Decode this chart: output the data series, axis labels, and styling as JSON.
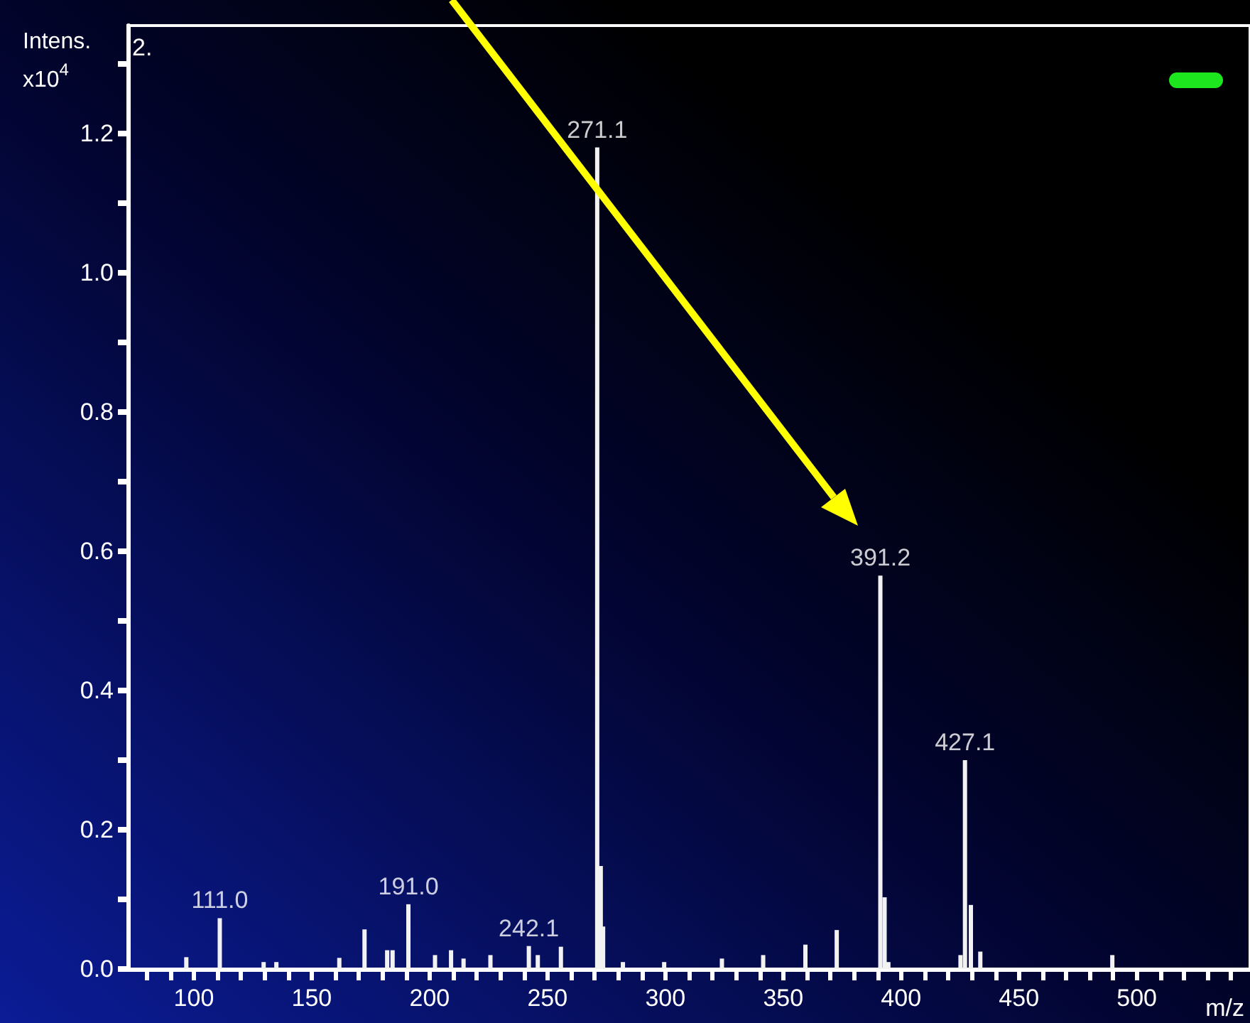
{
  "chart_data": {
    "type": "bar",
    "ylabel": "Intens.\nx10$^{4}$",
    "xlabel": "m/z",
    "annotations": [
      "2.",
      {
        "text": "111.0",
        "x": 111.0,
        "y": 0.073
      },
      {
        "text": "191.0",
        "x": 191.0,
        "y": 0.093
      },
      {
        "text": "242.1",
        "x": 242.1,
        "y": 0.033
      },
      {
        "text": "271.1",
        "x": 271.1,
        "y": 1.18
      },
      {
        "text": "391.2",
        "x": 391.2,
        "y": 0.565
      },
      {
        "text": "427.1",
        "x": 427.1,
        "y": 0.3
      }
    ],
    "x": [
      96.8,
      111.0,
      129.6,
      135,
      161.7,
      172.4,
      182,
      184.3,
      191.0,
      202.3,
      209.1,
      214.4,
      225.8,
      242.1,
      245.9,
      255.7,
      271.1,
      272.6,
      273.6,
      282,
      299.5,
      324,
      341.5,
      359.4,
      372.7,
      391.2,
      393,
      394.6,
      425.2,
      427.1,
      429.6,
      433.6,
      489.6
    ],
    "values": [
      0.017,
      0.073,
      0.01,
      0.01,
      0.016,
      0.057,
      0.027,
      0.027,
      0.093,
      0.02,
      0.027,
      0.015,
      0.02,
      0.033,
      0.02,
      0.032,
      1.18,
      0.148,
      0.061,
      0.01,
      0.01,
      0.015,
      0.02,
      0.035,
      0.056,
      0.565,
      0.103,
      0.01,
      0.02,
      0.3,
      0.092,
      0.025,
      0.02
    ],
    "color": "#f2f2f2",
    "xlim": [
      72,
      548
    ],
    "xticks": [
      {
        "value": 80,
        "label": null
      },
      {
        "value": 90,
        "label": null
      },
      100,
      {
        "value": 110,
        "label": null
      },
      {
        "value": 120,
        "label": null
      },
      {
        "value": 130,
        "label": null
      },
      {
        "value": 140,
        "label": null
      },
      150,
      {
        "value": 160,
        "label": null
      },
      {
        "value": 170,
        "label": null
      },
      {
        "value": 180,
        "label": null
      },
      {
        "value": 190,
        "label": null
      },
      200,
      {
        "value": 210,
        "label": null
      },
      {
        "value": 220,
        "label": null
      },
      {
        "value": 230,
        "label": null
      },
      {
        "value": 240,
        "label": null
      },
      250,
      {
        "value": 260,
        "label": null
      },
      {
        "value": 270,
        "label": null
      },
      {
        "value": 280,
        "label": null
      },
      {
        "value": 290,
        "label": null
      },
      300,
      {
        "value": 310,
        "label": null
      },
      {
        "value": 320,
        "label": null
      },
      {
        "value": 330,
        "label": null
      },
      {
        "value": 340,
        "label": null
      },
      350,
      {
        "value": 360,
        "label": null
      },
      {
        "value": 370,
        "label": null
      },
      {
        "value": 380,
        "label": null
      },
      {
        "value": 390,
        "label": null
      },
      400,
      {
        "value": 410,
        "label": null
      },
      {
        "value": 420,
        "label": null
      },
      {
        "value": 430,
        "label": null
      },
      {
        "value": 440,
        "label": null
      },
      450,
      {
        "value": 460,
        "label": null
      },
      {
        "value": 470,
        "label": null
      },
      {
        "value": 480,
        "label": null
      },
      {
        "value": 490,
        "label": null
      },
      500,
      {
        "value": 510,
        "label": null
      },
      {
        "value": 520,
        "label": null
      },
      {
        "value": 530,
        "label": null
      },
      {
        "value": 540,
        "label": null
      }
    ],
    "ylim": [
      0,
      1.355
    ],
    "yticks": [
      {
        "value": 0,
        "label": "0.0"
      },
      {
        "value": 0.1,
        "label": null
      },
      {
        "value": 0.2,
        "label": "0.2"
      },
      {
        "value": 0.3,
        "label": null
      },
      {
        "value": 0.4,
        "label": "0.4"
      },
      {
        "value": 0.5,
        "label": null
      },
      {
        "value": 0.6,
        "label": "0.6"
      },
      {
        "value": 0.7,
        "label": null
      },
      {
        "value": 0.8,
        "label": "0.8"
      },
      {
        "value": 0.9,
        "label": null
      },
      {
        "value": 1.0,
        "label": "1.0"
      },
      {
        "value": 1.1,
        "label": null
      },
      {
        "value": 1.2,
        "label": "1.2"
      },
      {
        "value": 1.3,
        "label": null
      }
    ],
    "grid": false
  }
}
